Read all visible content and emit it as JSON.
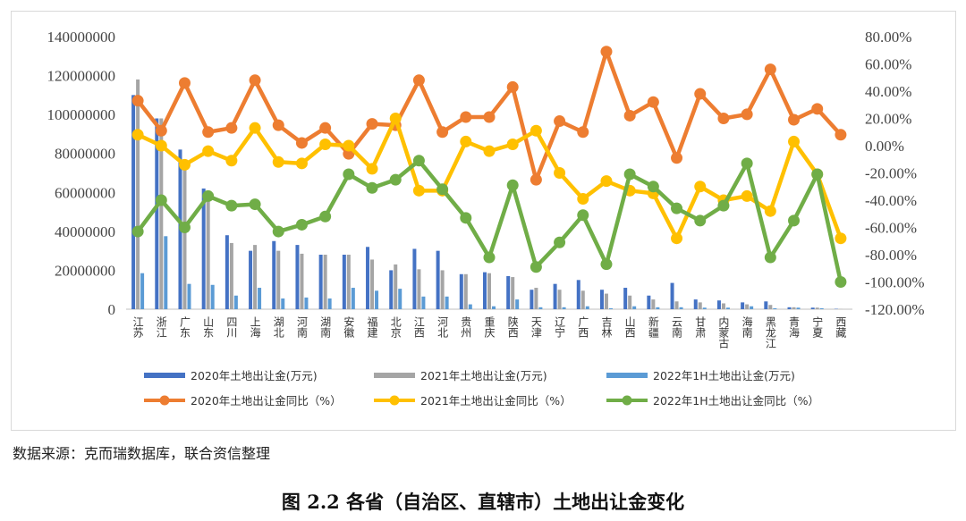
{
  "source_note": "数据来源：克而瑞数据库，联合资信整理",
  "caption": "图 2.2   各省（自治区、直辖市）土地出让金变化",
  "colors": {
    "bar2020": "#4472C4",
    "bar2021": "#A5A5A5",
    "bar2022": "#5B9BD5",
    "line2020": "#ED7D31",
    "line2021": "#FFC000",
    "line2022": "#70AD47"
  },
  "chart_data": {
    "type": "bar",
    "title": "",
    "left_axis": {
      "min": 0,
      "max": 140000000,
      "ticks": [
        "0",
        "20000000",
        "40000000",
        "60000000",
        "80000000",
        "100000000",
        "120000000",
        "140000000"
      ]
    },
    "right_axis": {
      "min": -120,
      "max": 80,
      "ticks": [
        "-120.00%",
        "-100.00%",
        "-80.00%",
        "-60.00%",
        "-40.00%",
        "-20.00%",
        "0.00%",
        "20.00%",
        "40.00%",
        "60.00%",
        "80.00%"
      ]
    },
    "grid": false,
    "legend_position": "bottom",
    "categories": [
      "江苏",
      "浙江",
      "广东",
      "山东",
      "四川",
      "上海",
      "湖北",
      "河南",
      "湖南",
      "安徽",
      "福建",
      "北京",
      "江西",
      "河北",
      "贵州",
      "重庆",
      "陕西",
      "天津",
      "辽宁",
      "广西",
      "吉林",
      "山西",
      "新疆",
      "云南",
      "甘肃",
      "内蒙古",
      "海南",
      "黑龙江",
      "青海",
      "宁夏",
      "西藏"
    ],
    "bar_series": [
      {
        "name": "2020年土地出让金(万元)",
        "values": [
          110000000,
          98000000,
          82000000,
          62000000,
          38000000,
          30000000,
          35000000,
          33000000,
          28000000,
          28000000,
          32000000,
          20000000,
          31000000,
          30000000,
          18000000,
          19000000,
          17000000,
          10000000,
          13000000,
          15000000,
          10000000,
          11000000,
          7000000,
          13500000,
          5000000,
          4500000,
          3500000,
          4000000,
          1000000,
          800000,
          200000
        ]
      },
      {
        "name": "2021年土地出让金(万元)",
        "values": [
          118000000,
          98000000,
          76000000,
          60000000,
          34000000,
          33000000,
          30000000,
          28500000,
          28000000,
          28000000,
          25500000,
          23000000,
          20500000,
          20000000,
          18000000,
          18500000,
          16500000,
          11000000,
          10000000,
          9500000,
          8000000,
          7000000,
          5000000,
          4000000,
          3500000,
          3000000,
          2500000,
          2200000,
          1000000,
          800000,
          100000
        ]
      },
      {
        "name": "2022年1H土地出让金(万元)",
        "values": [
          18500000,
          37500000,
          13000000,
          12500000,
          7000000,
          11000000,
          5500000,
          6000000,
          5500000,
          11000000,
          9500000,
          10500000,
          6500000,
          6500000,
          2500000,
          1500000,
          5000000,
          1000000,
          1000000,
          1500000,
          500000,
          1500000,
          1000000,
          1000000,
          800000,
          800000,
          1500000,
          500000,
          800000,
          500000,
          0
        ]
      }
    ],
    "line_series": [
      {
        "name": "2020年土地出让金同比（%）",
        "values": [
          33,
          11,
          46,
          10,
          13,
          48,
          15,
          2,
          13,
          -6,
          16,
          15,
          48,
          10,
          21,
          21,
          43,
          -25,
          18,
          10,
          69,
          22,
          32,
          -9,
          38,
          20,
          23,
          56,
          19,
          27,
          8
        ]
      },
      {
        "name": "2021年土地出让金同比（%）",
        "values": [
          8,
          0,
          -14,
          -4,
          -11,
          13,
          -12,
          -13,
          1,
          0,
          -17,
          20,
          -33,
          -33,
          3,
          -4,
          1,
          11,
          -20,
          -39,
          -26,
          -33,
          -35,
          -68,
          -30,
          -40,
          -37,
          -48,
          3,
          -21,
          -68
        ]
      },
      {
        "name": "2022年1H土地出让金同比（%）",
        "values": [
          -63,
          -40,
          -60,
          -37,
          -44,
          -43,
          -63,
          -58,
          -52,
          -21,
          -31,
          -25,
          -11,
          -32,
          -53,
          -82,
          -29,
          -89,
          -71,
          -51,
          -87,
          -21,
          -30,
          -46,
          -55,
          -44,
          -13,
          -82,
          -55,
          -21,
          -100
        ]
      }
    ]
  }
}
